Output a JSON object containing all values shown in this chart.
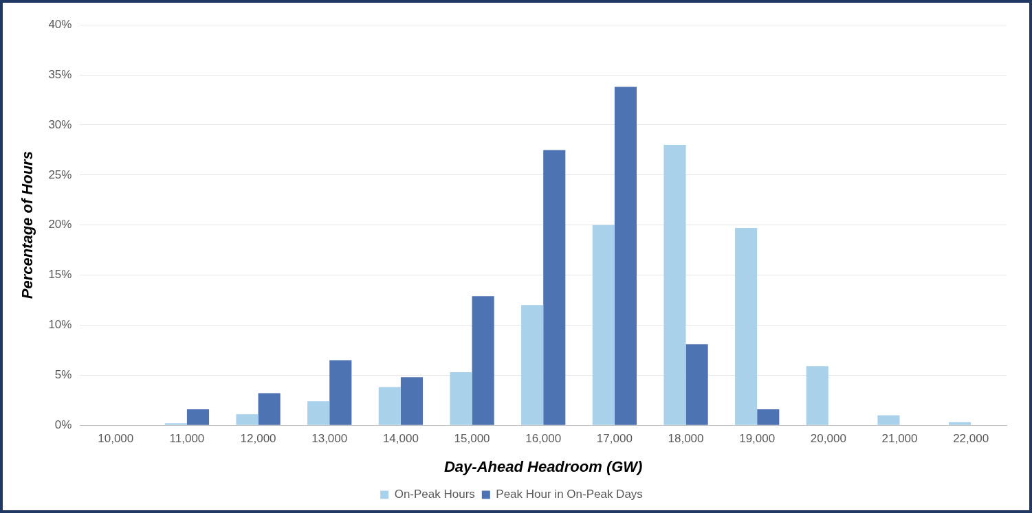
{
  "chart_data": {
    "type": "bar",
    "xlabel": "Day-Ahead Headroom (GW)",
    "ylabel": "Percentage of Hours",
    "categories": [
      "10,000",
      "11,000",
      "12,000",
      "13,000",
      "14,000",
      "15,000",
      "16,000",
      "17,000",
      "18,000",
      "19,000",
      "20,000",
      "21,000",
      "22,000"
    ],
    "series": [
      {
        "name": "On-Peak Hours",
        "color": "#a9d1ea",
        "values": [
          0,
          0.2,
          1.1,
          2.4,
          3.8,
          5.3,
          12,
          20,
          28,
          19.7,
          5.9,
          1,
          0.3
        ]
      },
      {
        "name": "Peak Hour in On-Peak Days",
        "color": "#4d73b2",
        "values": [
          0,
          1.6,
          3.2,
          6.5,
          4.8,
          12.9,
          27.5,
          33.8,
          8.1,
          1.6,
          0,
          0,
          0
        ]
      }
    ],
    "ylim": [
      0,
      40
    ],
    "yticks": [
      {
        "value": 0,
        "label": "0%"
      },
      {
        "value": 5,
        "label": "5%"
      },
      {
        "value": 10,
        "label": "10%"
      },
      {
        "value": 15,
        "label": "15%"
      },
      {
        "value": 20,
        "label": "20%"
      },
      {
        "value": 25,
        "label": "25%"
      },
      {
        "value": 30,
        "label": "30%"
      },
      {
        "value": 35,
        "label": "35%"
      },
      {
        "value": 40,
        "label": "40%"
      }
    ],
    "grid": "y",
    "legend": "bottom"
  }
}
